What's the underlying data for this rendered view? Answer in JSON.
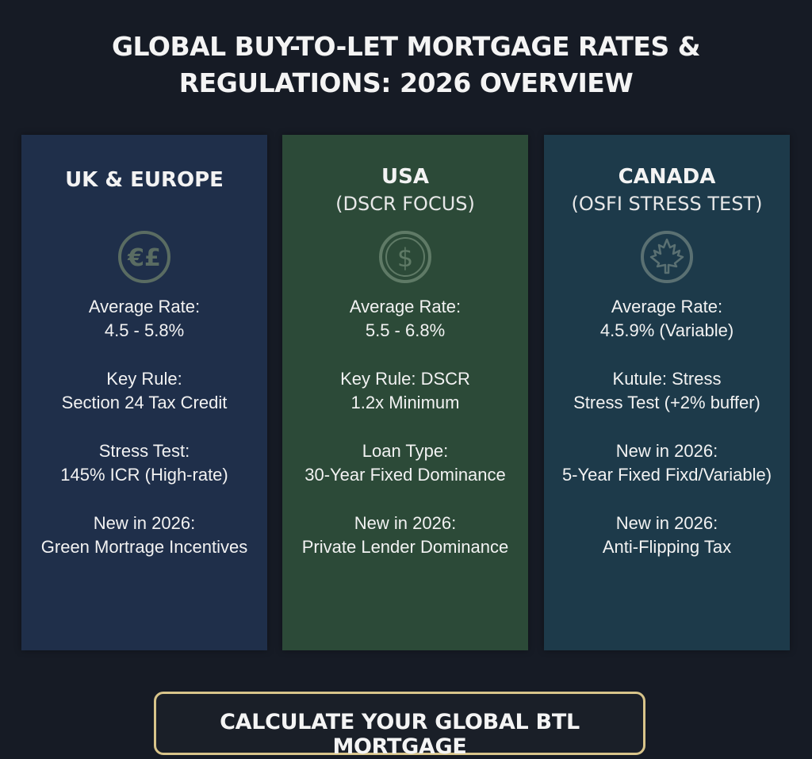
{
  "title": {
    "line1": "GLOBAL BUY-TO-LET MORTGAGE RATES &",
    "line2": "REGULATIONS: 2026 OVERVIEW"
  },
  "cards": [
    {
      "heading_line1": "UK & EUROPE",
      "heading_line2": "",
      "icon": "euro-pound-icon",
      "stats": [
        {
          "label": "Average Rate:",
          "value": "4.5 - 5.8%"
        },
        {
          "label": "Key Rule:",
          "value": "Section 24 Tax Credit"
        },
        {
          "label": "Stress Test:",
          "value": "145% ICR (High-rate)"
        },
        {
          "label": "New in 2026:",
          "value": "Green Mortrage Incentives"
        }
      ]
    },
    {
      "heading_line1": "USA",
      "heading_line2": "(DSCR FOCUS)",
      "icon": "dollar-icon",
      "stats": [
        {
          "label": "Average Rate:",
          "value": "5.5 - 6.8%"
        },
        {
          "label": "Key Rule: DSCR",
          "value": "1.2x Minimum"
        },
        {
          "label": "Loan Type:",
          "value": "30-Year Fixed Dominance"
        },
        {
          "label": "New in 2026:",
          "value": "Private Lender Dominance"
        }
      ]
    },
    {
      "heading_line1": "CANADA",
      "heading_line2": "(OSFI STRESS TEST)",
      "icon": "maple-leaf-icon",
      "stats": [
        {
          "label": "Average Rate:",
          "value": "4.5.9% (Variable)"
        },
        {
          "label": "Kutule: Stress",
          "value": "Stress Test (+2% buffer)"
        },
        {
          "label": "New in 2026:",
          "value": "5-Year Fixed Fixd/Variable)"
        },
        {
          "label": "New in 2026:",
          "value": "Anti-Flipping Tax"
        }
      ]
    }
  ],
  "cta": {
    "label": "CALCULATE YOUR GLOBAL BTL MORTGAGE"
  },
  "colors": {
    "background": "#161b25",
    "uk_card": "#1f2f4a",
    "usa_card": "#2c4a38",
    "canada_card": "#1d3a4a",
    "cta_border": "#d8c48a"
  }
}
